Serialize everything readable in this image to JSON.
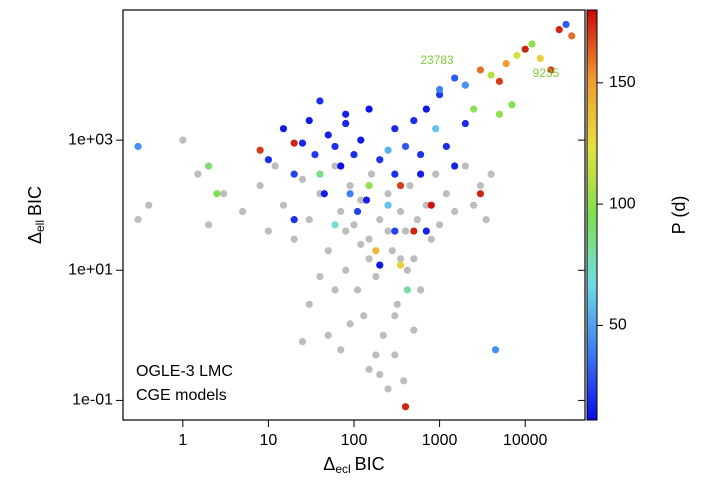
{
  "chart_data": {
    "type": "scatter",
    "xlabel": {
      "symbol": "Δ",
      "sub": "ecl",
      "text": "BIC"
    },
    "ylabel": {
      "symbol": "Δ",
      "sub": "ell",
      "text": "BIC"
    },
    "log_x": true,
    "log_y": true,
    "xlim": [
      0.2,
      50000
    ],
    "ylim": [
      0.05,
      100000
    ],
    "xticks": [
      1,
      10,
      100,
      1000,
      10000
    ],
    "yticks": [
      {
        "value": 0.1,
        "label": "1e-01"
      },
      {
        "value": 10,
        "label": "1e+01"
      },
      {
        "value": 1000,
        "label": "1e+03"
      }
    ],
    "series": [
      {
        "color": "#bdbdbd",
        "x": [
          0.3,
          0.4,
          1,
          1.5,
          2,
          3,
          5,
          8,
          10,
          12,
          15,
          20,
          25,
          30,
          40,
          50,
          60,
          70,
          80,
          90,
          100,
          110,
          120,
          130,
          150,
          160,
          180,
          200,
          220,
          250,
          280,
          300,
          320,
          350,
          380,
          400,
          420,
          450,
          500,
          550,
          600,
          700,
          800,
          900,
          1000,
          1200,
          1500,
          2000,
          2500,
          3000,
          3500,
          4000,
          30,
          50,
          25,
          70,
          150,
          200,
          250,
          180,
          90,
          60,
          40,
          500,
          300,
          120,
          80,
          250,
          350,
          150
        ],
        "values": [
          60,
          100,
          1000,
          300,
          50,
          150,
          80,
          200,
          40,
          400,
          100,
          30,
          250,
          60,
          150,
          20,
          400,
          80,
          10,
          200,
          50,
          5,
          120,
          2,
          30,
          300,
          8,
          60,
          1,
          150,
          20,
          0.5,
          3,
          80,
          0.2,
          40,
          10,
          200,
          15,
          60,
          5,
          100,
          30,
          300,
          50,
          150,
          80,
          400,
          100,
          200,
          60,
          300,
          3,
          1,
          0.8,
          0.6,
          0.3,
          0.25,
          0.15,
          0.5,
          1.5,
          5,
          8,
          1.2,
          2,
          25,
          40,
          40,
          15,
          15
        ]
      },
      {
        "x": [
          0.3,
          8,
          10,
          15,
          2,
          2.5,
          20,
          25,
          30,
          35,
          40,
          50,
          60,
          70,
          80,
          90,
          100,
          120,
          150,
          150,
          200,
          250,
          300,
          300,
          350,
          400,
          400,
          420,
          500,
          500,
          600,
          700,
          800,
          900,
          1000,
          1200,
          1000,
          1500,
          2000,
          2500,
          3000,
          3000,
          4000,
          5000,
          6000,
          8000,
          10000,
          12000,
          15000,
          20000,
          30000,
          35000,
          25000,
          5000,
          7000,
          4500,
          20,
          40,
          60,
          110,
          180,
          250,
          80,
          140,
          700,
          300,
          45,
          20,
          350,
          200,
          600,
          2000,
          1500
        ],
        "values": [
          800,
          700,
          500,
          1500,
          400,
          150,
          300,
          900,
          2000,
          600,
          300,
          1200,
          800,
          400,
          2500,
          150,
          600,
          1000,
          200,
          3000,
          500,
          100,
          1500,
          40,
          200,
          800,
          0.08,
          5,
          2000,
          40,
          300,
          3000,
          100,
          1500,
          5000,
          800,
          6000,
          9000,
          7000,
          3000,
          150,
          12000,
          10000,
          8000,
          15000,
          20000,
          25000,
          30000,
          18000,
          12000,
          60000,
          40000,
          50000,
          2500,
          3500,
          0.6,
          900,
          4000,
          50,
          80,
          20,
          700,
          1800,
          120,
          40,
          300,
          150,
          60,
          12,
          12,
          600,
          1800,
          400
        ],
        "p": [
          45,
          170,
          20,
          15,
          90,
          95,
          25,
          18,
          14,
          22,
          85,
          16,
          20,
          12,
          17,
          40,
          19,
          15,
          100,
          13,
          21,
          60,
          18,
          24,
          170,
          30,
          175,
          80,
          19,
          175,
          16,
          14,
          178,
          60,
          22,
          20,
          40,
          30,
          45,
          100,
          175,
          160,
          110,
          170,
          150,
          120,
          175,
          100,
          130,
          170,
          30,
          160,
          175,
          100,
          95,
          45,
          175,
          20,
          70,
          25,
          140,
          55,
          18,
          16,
          17,
          20,
          15,
          20,
          130,
          14,
          21,
          19,
          17
        ]
      }
    ],
    "colorbar": {
      "label": "P (d)",
      "lim": [
        11,
        180
      ],
      "ticks": [
        50,
        100,
        150
      ],
      "colormap": [
        "#0b0be6",
        "#3c7ef2",
        "#6fdce6",
        "#7fe050",
        "#e6e040",
        "#f09a30",
        "#c80a0a"
      ]
    },
    "annotations": [
      {
        "text": "23783",
        "color": "#7ccf3a"
      },
      {
        "text": "9235",
        "color": "#7ccf3a"
      }
    ],
    "text_box": [
      "OGLE-3 LMC",
      "CGE models"
    ]
  }
}
